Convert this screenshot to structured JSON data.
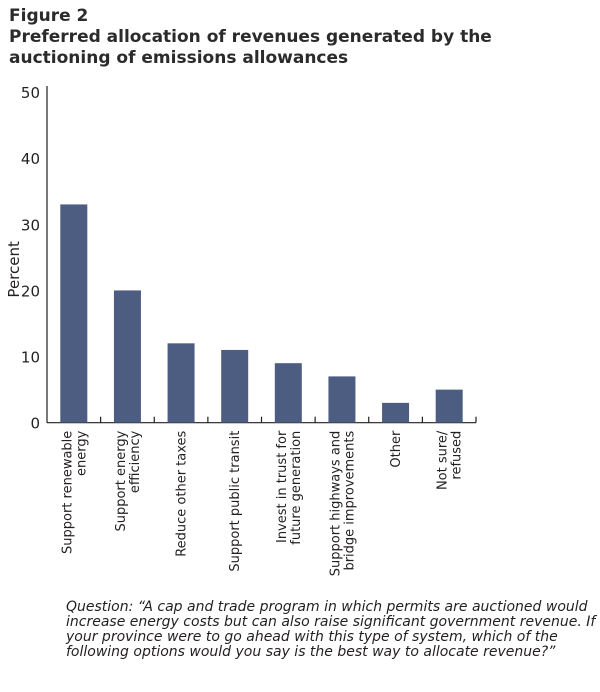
{
  "figure_label": "Figure 2",
  "title": "Preferred allocation of revenues generated by the auctioning of emissions allowances",
  "note": "Question: “A cap and trade program in which permits are auctioned would increase energy costs but can also raise significant government revenue. If your province were to go ahead with this type of system, which of the following options would you say is the best way to allocate revenue?”",
  "chart_data": {
    "type": "bar",
    "title": "Preferred allocation of revenues generated by the auctioning of emissions allowances",
    "xlabel": "",
    "ylabel": "Percent",
    "ylim": [
      0,
      50
    ],
    "yticks": [
      0,
      10,
      20,
      30,
      40,
      50
    ],
    "grid": false,
    "bar_color": "#4d5d82",
    "categories": [
      [
        "Support renewable",
        "energy"
      ],
      [
        "Support energy",
        "efficiency"
      ],
      [
        "Reduce other taxes"
      ],
      [
        "Support public transit"
      ],
      [
        "Invest in trust for",
        "future generation"
      ],
      [
        "Support highways and",
        "bridge improvements"
      ],
      [
        "Other"
      ],
      [
        "Not sure/",
        "refused"
      ]
    ],
    "values": [
      33,
      20,
      12,
      11,
      9,
      7,
      3,
      5
    ]
  }
}
